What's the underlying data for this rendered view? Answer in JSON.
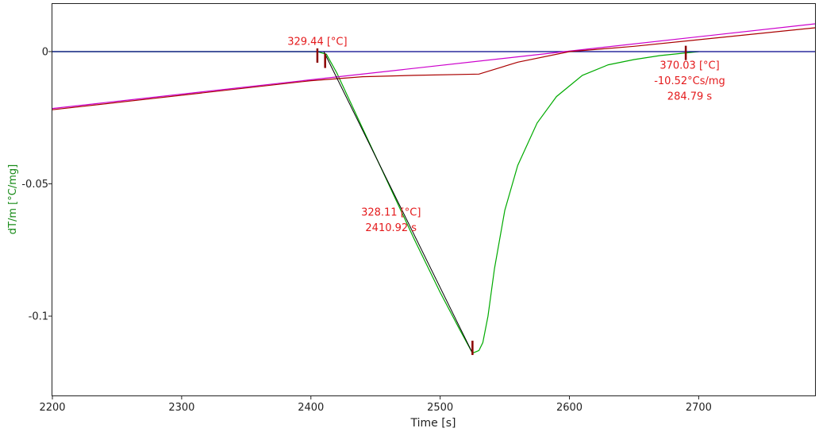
{
  "chart_data": {
    "type": "line",
    "title": "",
    "xlabel": "Time [s]",
    "ylabel": "dT/m  [°C/mg]",
    "xlim": [
      2200,
      2790
    ],
    "ylim": [
      -0.13,
      0.018
    ],
    "x_ticks": [
      2200,
      2300,
      2400,
      2500,
      2600,
      2700
    ],
    "y_ticks": [
      0,
      -0.05,
      -0.1
    ],
    "y_tick_labels": [
      "0",
      "-0.05",
      "-0.1"
    ],
    "grid": false,
    "legend": "none",
    "series": [
      {
        "color": "#00aa00",
        "x": [
          2200,
          2300,
          2405,
          2412,
          2420,
          2440,
          2460,
          2480,
          2500,
          2515,
          2525,
          2530,
          2533,
          2537,
          2542,
          2550,
          2560,
          2575,
          2590,
          2610,
          2630,
          2650,
          2670,
          2690,
          2700
        ],
        "y": [
          0,
          0,
          0,
          -0.001,
          -0.008,
          -0.029,
          -0.05,
          -0.071,
          -0.091,
          -0.105,
          -0.114,
          -0.113,
          -0.11,
          -0.1,
          -0.082,
          -0.06,
          -0.043,
          -0.027,
          -0.017,
          -0.009,
          -0.005,
          -0.003,
          -0.0015,
          -0.0005,
          0
        ]
      },
      {
        "color": "#00008b",
        "x": [
          2200,
          2790
        ],
        "y": [
          0,
          0
        ]
      },
      {
        "color": "#cc00cc",
        "x": [
          2200,
          2790
        ],
        "y": [
          -0.0215,
          0.0105
        ]
      },
      {
        "color": "#aa0000",
        "x": [
          2200,
          2400,
          2440,
          2480,
          2530,
          2560,
          2600,
          2650,
          2700,
          2790
        ],
        "y": [
          -0.022,
          -0.011,
          -0.0095,
          -0.009,
          -0.0085,
          -0.004,
          0,
          0.002,
          0.0045,
          0.009
        ]
      },
      {
        "color": "#000000",
        "x": [
          2410,
          2525
        ],
        "y": [
          0,
          -0.114
        ]
      }
    ],
    "markers": [
      {
        "x": 2405,
        "y": -0.0015
      },
      {
        "x": 2411,
        "y": -0.0035
      },
      {
        "x": 2525,
        "y": -0.112
      },
      {
        "x": 2690,
        "y": -0.0005
      }
    ],
    "annotations": [
      {
        "x": 2405,
        "y": 0.0025,
        "lines": [
          "329.44 [°C]"
        ]
      },
      {
        "x": 2462,
        "y": -0.062,
        "lines": [
          "328.11 [°C]",
          "2410.92 s"
        ]
      },
      {
        "x": 2693,
        "y": -0.0065,
        "lines": [
          "370.03 [°C]",
          "-10.52°Cs/mg",
          "284.79 s"
        ]
      }
    ],
    "annotation_color": "#e41a1c"
  }
}
